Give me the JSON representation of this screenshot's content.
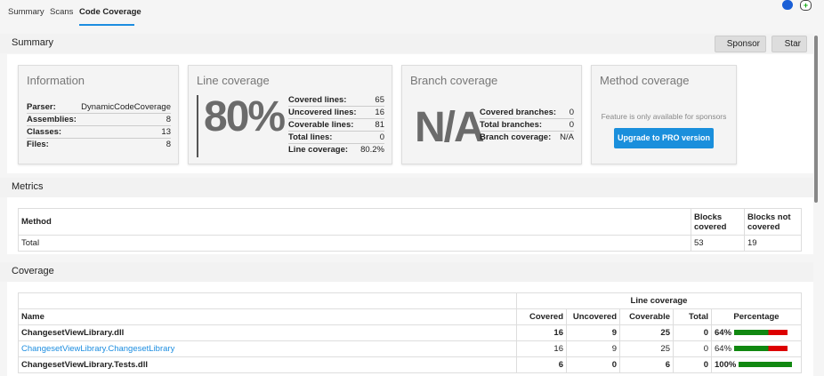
{
  "tabs": [
    {
      "label": "Summary"
    },
    {
      "label": "Scans"
    },
    {
      "label": "Code Coverage"
    }
  ],
  "summary": {
    "title": "Summary",
    "sponsor": "Sponsor",
    "star": "Star",
    "information": {
      "title": "Information",
      "rows": [
        {
          "k": "Parser:",
          "v": "DynamicCodeCoverage"
        },
        {
          "k": "Assemblies:",
          "v": "8"
        },
        {
          "k": "Classes:",
          "v": "13"
        },
        {
          "k": "Files:",
          "v": "8"
        }
      ]
    },
    "line": {
      "title": "Line coverage",
      "big": "80%",
      "rows": [
        {
          "k": "Covered lines:",
          "v": "65"
        },
        {
          "k": "Uncovered lines:",
          "v": "16"
        },
        {
          "k": "Coverable lines:",
          "v": "81"
        },
        {
          "k": "Total lines:",
          "v": "0"
        },
        {
          "k": "Line coverage:",
          "v": "80.2%"
        }
      ]
    },
    "branch": {
      "title": "Branch coverage",
      "big": "N/A",
      "rows": [
        {
          "k": "Covered branches:",
          "v": "0"
        },
        {
          "k": "Total branches:",
          "v": "0"
        },
        {
          "k": "Branch coverage:",
          "v": "N/A"
        }
      ]
    },
    "method": {
      "title": "Method coverage",
      "note": "Feature is only available for sponsors",
      "button": "Upgrade to PRO version"
    }
  },
  "metrics": {
    "title": "Metrics",
    "headers": [
      "Method",
      "Blocks covered",
      "Blocks not covered"
    ],
    "rows": [
      [
        "Total",
        "53",
        "19"
      ]
    ]
  },
  "coverage": {
    "title": "Coverage",
    "group_header": "Line coverage",
    "headers": [
      "Name",
      "Covered",
      "Uncovered",
      "Coverable",
      "Total",
      "Percentage"
    ],
    "rows": [
      {
        "name": "ChangesetViewLibrary.dll",
        "covered": "16",
        "uncovered": "9",
        "coverable": "25",
        "total": "0",
        "pct": "64%",
        "pct_value": 64,
        "type": "assembly"
      },
      {
        "name": "ChangesetViewLibrary.ChangesetLibrary",
        "covered": "16",
        "uncovered": "9",
        "coverable": "25",
        "total": "0",
        "pct": "64%",
        "pct_value": 64,
        "type": "class"
      },
      {
        "name": "ChangesetViewLibrary.Tests.dll",
        "covered": "6",
        "uncovered": "0",
        "coverable": "6",
        "total": "0",
        "pct": "100%",
        "pct_value": 100,
        "type": "assembly"
      }
    ]
  },
  "colors": {
    "accent": "#1c8de0",
    "covered": "#118811",
    "uncovered": "#dd0000"
  }
}
